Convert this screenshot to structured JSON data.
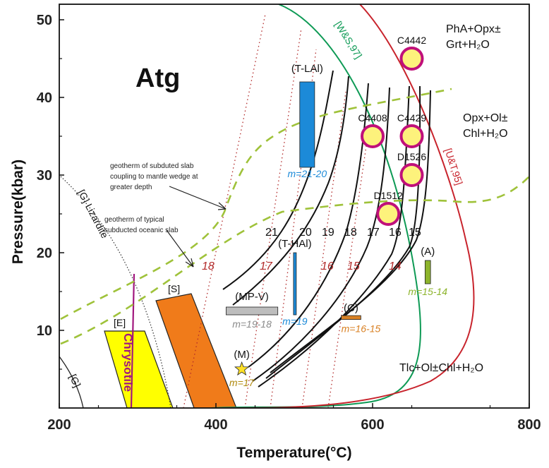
{
  "chart_data": {
    "type": "phase-diagram",
    "xlabel": "Temperature(°C)",
    "ylabel": "Pressure(kbar)",
    "xlim": [
      200,
      800
    ],
    "ylim": [
      0,
      52
    ],
    "x_ticks": [
      "200",
      "400",
      "600",
      "800"
    ],
    "x_tick_values": [
      200,
      400,
      600,
      800
    ],
    "y_ticks": [
      "10",
      "20",
      "30",
      "40",
      "50"
    ],
    "y_tick_values": [
      10,
      20,
      30,
      40,
      50
    ],
    "field_labels": {
      "atg": "Atg",
      "pha": "PhA+Opx±",
      "pha2": "Grt+H₂O",
      "opx": "Opx+Ol±",
      "opx2": "Chl+H₂O",
      "tlc": "Tlc+Ol±Chl+H₂O",
      "lizardite": "[G] Lizardite",
      "g": "[G]",
      "chrysotile": "Chrysotile",
      "e": "[E]",
      "s": "[S]",
      "ws97": "[W&S,97]",
      "ut95": "[U&T,95]"
    },
    "geotherm_labels": {
      "coupling": [
        "geotherm of subduted slab",
        "coupling to mantle wedge at",
        "greater depth"
      ],
      "typical": [
        "geotherm of typical",
        "subducted oceanic slab"
      ]
    },
    "experiments": [
      {
        "label": "(T-LAl)",
        "m": "m=21-20",
        "x0": 507,
        "x1": 526,
        "y0": 31,
        "y1": 42,
        "color": "#1c8ad8"
      },
      {
        "label": "(T-HAl)",
        "m": "m=19",
        "x0": 499,
        "x1": 502,
        "y0": 12,
        "y1": 20,
        "color": "#1c8ad8"
      },
      {
        "label": "(MP-V)",
        "m": "m=19-18",
        "x0": 413,
        "x1": 479,
        "y0": 12,
        "y1": 13,
        "color": "#bdbdbd"
      },
      {
        "label": "(C)",
        "m": "m=16-15",
        "x0": 560,
        "x1": 585,
        "y0": 11.4,
        "y1": 11.9,
        "color": "#d98124"
      },
      {
        "label": "(A)",
        "m": "m=15-14",
        "x0": 667,
        "x1": 674,
        "y0": 16,
        "y1": 19,
        "color": "#8db42c"
      },
      {
        "label": "(M)",
        "m": "m=17",
        "x": 433,
        "y": 5,
        "color": "#ffe026"
      }
    ],
    "samples": [
      {
        "name": "C4442",
        "x": 650,
        "y": 45
      },
      {
        "name": "C4408",
        "x": 600,
        "y": 35
      },
      {
        "name": "C4429",
        "x": 650,
        "y": 35
      },
      {
        "name": "D1526",
        "x": 650,
        "y": 30
      },
      {
        "name": "D1512",
        "x": 620,
        "y": 25
      }
    ],
    "m_isopleths": {
      "solid_labels": [
        "21",
        "20",
        "19",
        "18",
        "17",
        "16",
        "15"
      ],
      "dotted_labels": [
        "18",
        "17",
        "16",
        "15",
        "14"
      ]
    }
  }
}
